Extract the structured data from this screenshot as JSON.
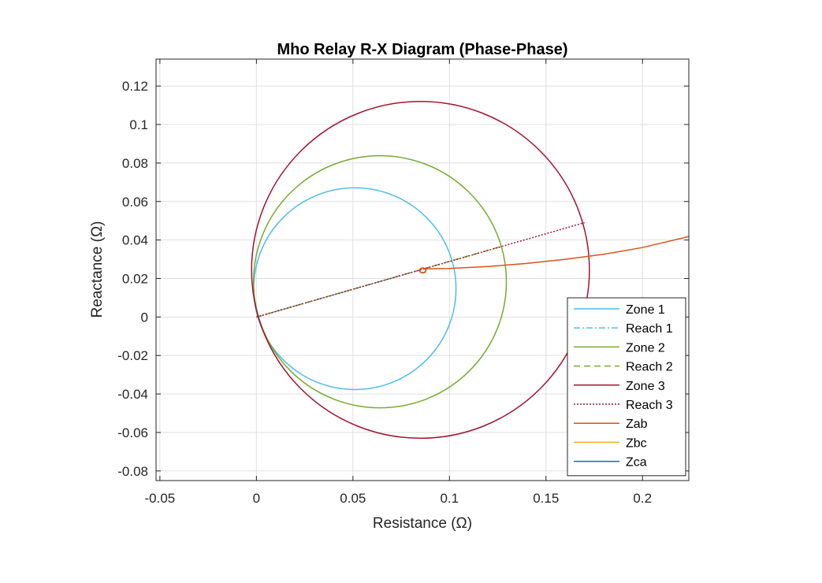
{
  "chart_data": {
    "type": "line",
    "title": "Mho Relay R-X Diagram (Phase-Phase)",
    "xlabel": "Resistance (Ω)",
    "ylabel": "Reactance (Ω)",
    "xlim": [
      -0.052,
      0.224
    ],
    "ylim": [
      -0.085,
      0.134
    ],
    "xticks": [
      -0.05,
      0,
      0.05,
      0.1,
      0.15,
      0.2
    ],
    "xtick_labels": [
      "-0.05",
      "0",
      "0.05",
      "0.1",
      "0.15",
      "0.2"
    ],
    "yticks": [
      -0.08,
      -0.06,
      -0.04,
      -0.02,
      0,
      0.02,
      0.04,
      0.06,
      0.08,
      0.1,
      0.12
    ],
    "ytick_labels": [
      "-0.08",
      "-0.06",
      "-0.04",
      "-0.02",
      "0",
      "0.02",
      "0.04",
      "0.06",
      "0.08",
      "0.1",
      "0.12"
    ],
    "grid": true,
    "legend_position": "bottom-right",
    "series": [
      {
        "name": "Zone 1",
        "kind": "circle",
        "color": "#4DBEEE",
        "dash": "solid",
        "center": [
          0.051,
          0.0147
        ],
        "radius": 0.0524
      },
      {
        "name": "Reach 1",
        "kind": "line",
        "color": "#4DBEEE",
        "dash": "dashdot",
        "x": [
          0,
          0.085
        ],
        "y": [
          0,
          0.0245
        ]
      },
      {
        "name": "Zone 2",
        "kind": "circle",
        "color": "#77AC30",
        "dash": "solid",
        "center": [
          0.064,
          0.0183
        ],
        "radius": 0.0655
      },
      {
        "name": "Reach 2",
        "kind": "line",
        "color": "#77AC30",
        "dash": "dashed",
        "x": [
          0,
          0.127
        ],
        "y": [
          0,
          0.0367
        ]
      },
      {
        "name": "Zone 3",
        "kind": "circle",
        "color": "#A2142F",
        "dash": "solid",
        "center": [
          0.085,
          0.0245
        ],
        "radius": 0.0875
      },
      {
        "name": "Reach 3",
        "kind": "line",
        "color": "#A2142F",
        "dash": "dotted",
        "x": [
          0,
          0.17
        ],
        "y": [
          0,
          0.049
        ]
      },
      {
        "name": "Zab",
        "kind": "line",
        "color": "#D95319",
        "dash": "solid",
        "x": [
          0.087,
          0.1,
          0.12,
          0.14,
          0.16,
          0.18,
          0.2,
          0.224
        ],
        "y": [
          0.025,
          0.0252,
          0.0262,
          0.0278,
          0.03,
          0.0326,
          0.0361,
          0.0418
        ]
      },
      {
        "name": "Zbc",
        "kind": "line",
        "color": "#EDB120",
        "dash": "solid",
        "x": [],
        "y": []
      },
      {
        "name": "Zca",
        "kind": "line",
        "color": "#0072BD",
        "dash": "solid",
        "x": [],
        "y": []
      }
    ]
  }
}
